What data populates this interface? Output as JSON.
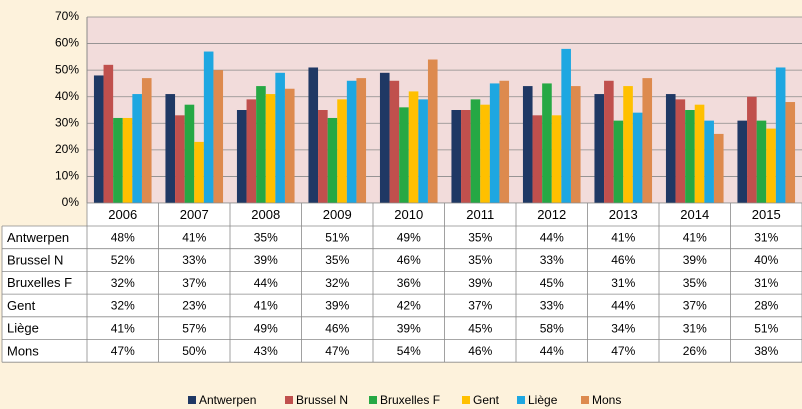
{
  "chart_data": {
    "type": "bar",
    "categories": [
      "2006",
      "2007",
      "2008",
      "2009",
      "2010",
      "2011",
      "2012",
      "2013",
      "2014",
      "2015"
    ],
    "series": [
      {
        "name": "Antwerpen",
        "color": "#1f3864",
        "values": [
          48,
          41,
          35,
          51,
          49,
          35,
          44,
          41,
          41,
          31
        ],
        "value_labels": [
          "48%",
          "41%",
          "35%",
          "51%",
          "49%",
          "35%",
          "44%",
          "41%",
          "41%",
          "31%"
        ]
      },
      {
        "name": "Brussel N",
        "color": "#c0504d",
        "values": [
          52,
          33,
          39,
          35,
          46,
          35,
          33,
          46,
          39,
          40
        ],
        "value_labels": [
          "52%",
          "33%",
          "39%",
          "35%",
          "46%",
          "35%",
          "33%",
          "46%",
          "39%",
          "40%"
        ]
      },
      {
        "name": "Bruxelles F",
        "color": "#26a844",
        "values": [
          32,
          37,
          44,
          32,
          36,
          39,
          45,
          31,
          35,
          31
        ],
        "value_labels": [
          "32%",
          "37%",
          "44%",
          "32%",
          "36%",
          "39%",
          "45%",
          "31%",
          "35%",
          "31%"
        ]
      },
      {
        "name": "Gent",
        "color": "#ffc000",
        "values": [
          32,
          23,
          41,
          39,
          42,
          37,
          33,
          44,
          37,
          28
        ],
        "value_labels": [
          "32%",
          "23%",
          "41%",
          "39%",
          "42%",
          "37%",
          "33%",
          "44%",
          "37%",
          "28%"
        ]
      },
      {
        "name": "Liège",
        "color": "#1ea7e1",
        "values": [
          41,
          57,
          49,
          46,
          39,
          45,
          58,
          34,
          31,
          51
        ],
        "value_labels": [
          "41%",
          "57%",
          "49%",
          "46%",
          "39%",
          "45%",
          "58%",
          "34%",
          "31%",
          "51%"
        ]
      },
      {
        "name": "Mons",
        "color": "#dd8a4e",
        "values": [
          47,
          50,
          43,
          47,
          54,
          46,
          44,
          47,
          26,
          38
        ],
        "value_labels": [
          "47%",
          "50%",
          "43%",
          "47%",
          "54%",
          "46%",
          "44%",
          "47%",
          "26%",
          "38%"
        ]
      }
    ],
    "ylim": [
      0,
      70
    ],
    "yticks": [
      {
        "value": 0,
        "label": "0%"
      },
      {
        "value": 10,
        "label": "10%"
      },
      {
        "value": 20,
        "label": "20%"
      },
      {
        "value": 30,
        "label": "30%"
      },
      {
        "value": 40,
        "label": "40%"
      },
      {
        "value": 50,
        "label": "50%"
      },
      {
        "value": 60,
        "label": "60%"
      },
      {
        "value": 70,
        "label": "70%"
      }
    ],
    "grid": true
  }
}
